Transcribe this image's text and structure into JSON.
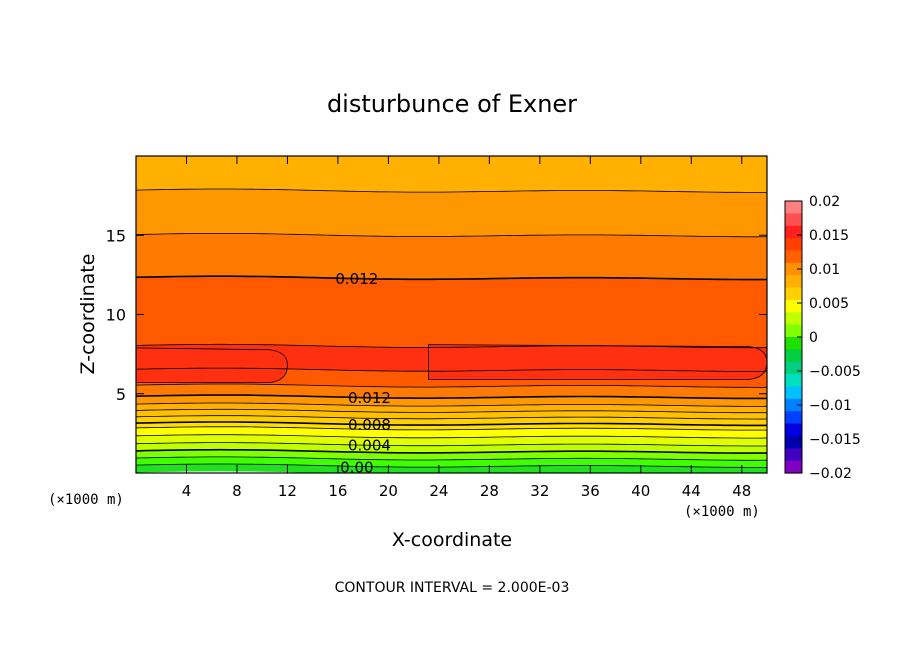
{
  "chart_data": {
    "type": "heatmap",
    "title": "disturbunce of Exner",
    "xlabel": "X-coordinate",
    "ylabel": "Z-coordinate",
    "x_unit": "(×1000 m)",
    "z_unit": "(×1000 m)",
    "xlim": [
      0,
      50
    ],
    "ylim": [
      0,
      20
    ],
    "x_ticks": [
      4,
      8,
      12,
      16,
      20,
      24,
      28,
      32,
      36,
      40,
      44,
      48
    ],
    "x_tick_labels": [
      "4",
      "8",
      "12",
      "16",
      "20",
      "24",
      "28",
      "32",
      "36",
      "40",
      "44",
      "48"
    ],
    "y_ticks": [
      5,
      10,
      15
    ],
    "y_tick_labels": [
      "5",
      "10",
      "15"
    ],
    "contour_interval_text": "CONTOUR INTERVAL = 2.000E-03",
    "contour_interval": 0.002,
    "contour_labels": [
      {
        "text": "0.012",
        "x": 17.5,
        "z": 12.3
      },
      {
        "text": "0.012",
        "x": 18.5,
        "z": 4.8
      },
      {
        "text": "0.008",
        "x": 18.5,
        "z": 3.1
      },
      {
        "text": "0.004",
        "x": 18.5,
        "z": 1.8
      },
      {
        "text": "0.00",
        "x": 17.5,
        "z": 0.4
      }
    ],
    "field_bands": [
      {
        "z": 0.0,
        "value": 0.0
      },
      {
        "z": 0.45,
        "value": 0.002
      },
      {
        "z": 0.9,
        "value": 0.003
      },
      {
        "z": 1.35,
        "value": 0.004
      },
      {
        "z": 1.8,
        "value": 0.005
      },
      {
        "z": 2.3,
        "value": 0.006
      },
      {
        "z": 2.8,
        "value": 0.007
      },
      {
        "z": 3.1,
        "value": 0.008
      },
      {
        "z": 3.5,
        "value": 0.009
      },
      {
        "z": 3.9,
        "value": 0.01
      },
      {
        "z": 4.3,
        "value": 0.011
      },
      {
        "z": 4.8,
        "value": 0.012
      },
      {
        "z": 5.5,
        "value": 0.013
      },
      {
        "z": 6.5,
        "value": 0.014
      },
      {
        "z": 8.0,
        "value": 0.013
      },
      {
        "z": 12.3,
        "value": 0.012
      },
      {
        "z": 15.0,
        "value": 0.011
      },
      {
        "z": 17.8,
        "value": 0.01
      }
    ],
    "max_regions": [
      {
        "value": 0.014,
        "x_range": [
          0,
          12
        ],
        "z_center": 6.8
      },
      {
        "value": 0.014,
        "x_range": [
          23.5,
          50
        ],
        "z_center": 7.0
      }
    ],
    "colorbar": {
      "min": -0.02,
      "max": 0.02,
      "ticks": [
        0.02,
        0.015,
        0.01,
        0.005,
        0,
        -0.005,
        -0.01,
        -0.015,
        -0.02
      ],
      "tick_labels": [
        "0.02",
        "0.015",
        "0.01",
        "0.005",
        "0",
        "−0.005",
        "−0.01",
        "−0.015",
        "−0.02"
      ],
      "colors_top_to_bottom": [
        "#ff8080",
        "#ff5050",
        "#ff2020",
        "#ff4000",
        "#ff6000",
        "#ff9000",
        "#ffb000",
        "#ffd000",
        "#ffff00",
        "#c0ff00",
        "#80ff00",
        "#20e000",
        "#00d040",
        "#00d080",
        "#00e0c0",
        "#00c0ff",
        "#0080ff",
        "#0040ff",
        "#0000e0",
        "#0000b0",
        "#4000c0",
        "#8000c0"
      ]
    },
    "band_colors": {
      "0.000": "#20e020",
      "0.002": "#40ff00",
      "0.003": "#80ff00",
      "0.004": "#c0ff00",
      "0.005": "#e0ff00",
      "0.006": "#ffff00",
      "0.007": "#ffe000",
      "0.008": "#ffd000",
      "0.009": "#ffc000",
      "0.010": "#ffb000",
      "0.011": "#ff9800",
      "0.012": "#ff7a00",
      "0.013": "#ff5a00",
      "0.014": "#ff3010"
    }
  }
}
